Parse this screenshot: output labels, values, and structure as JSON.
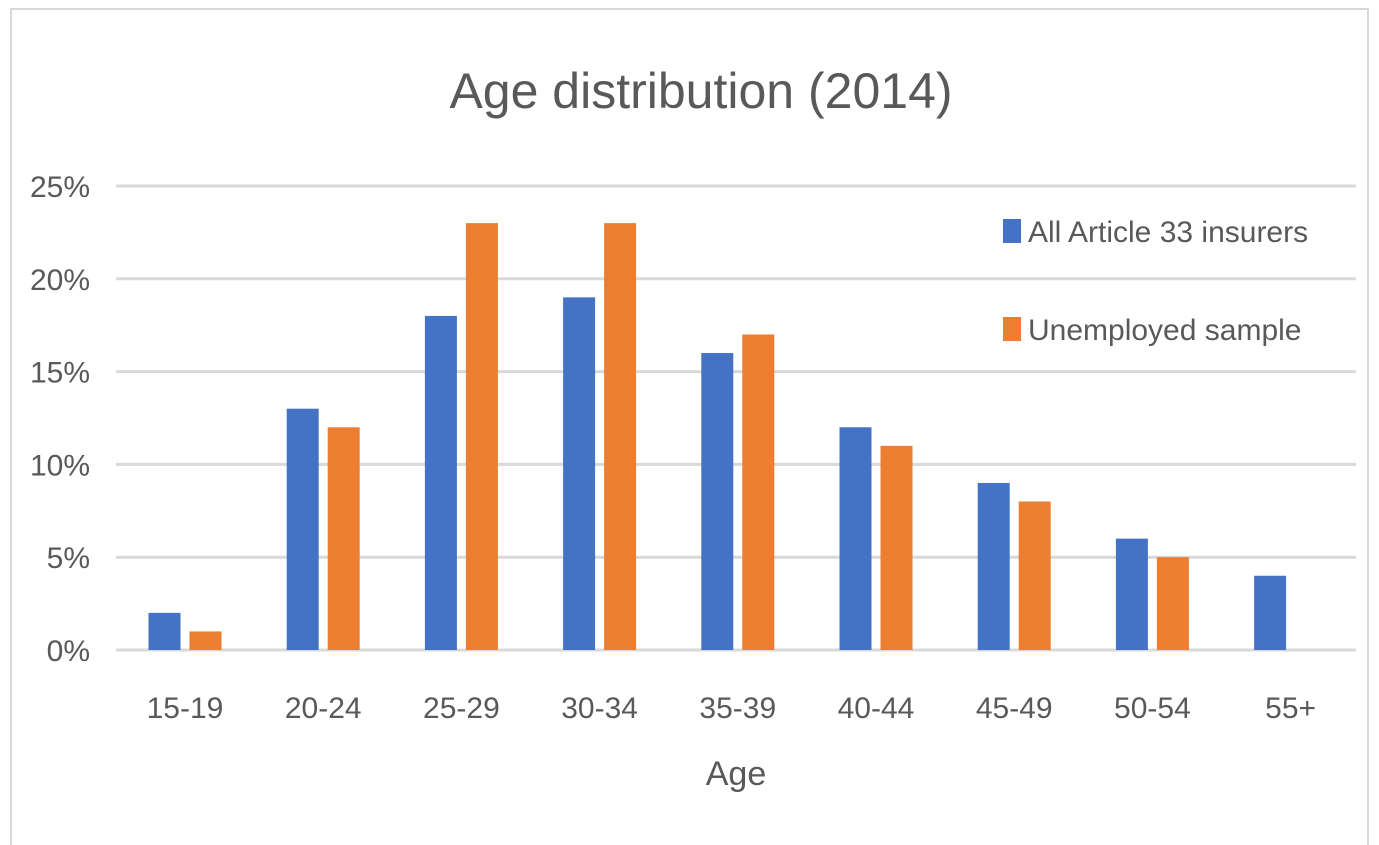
{
  "chart_data": {
    "type": "bar",
    "title": "Age distribution (2014)",
    "xlabel": "Age",
    "ylabel": "",
    "categories": [
      "15-19",
      "20-24",
      "25-29",
      "30-34",
      "35-39",
      "40-44",
      "45-49",
      "50-54",
      "55+"
    ],
    "series": [
      {
        "name": "All Article 33 insurers",
        "color": "#4472c4",
        "values": [
          2,
          13,
          18,
          19,
          16,
          12,
          9,
          6,
          4
        ]
      },
      {
        "name": "Unemployed sample",
        "color": "#ed7d31",
        "values": [
          1,
          12,
          23,
          23,
          17,
          11,
          8,
          5,
          null
        ]
      }
    ],
    "ylim": [
      0,
      25
    ],
    "yticks": [
      "0%",
      "5%",
      "10%",
      "15%",
      "20%",
      "25%"
    ],
    "grid": true,
    "legend_position": "top-right"
  }
}
